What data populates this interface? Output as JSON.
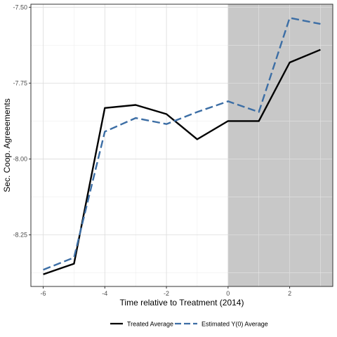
{
  "chart_data": {
    "type": "line",
    "title": "",
    "xlabel": "Time relative to Treatment (2014)",
    "ylabel": "Sec. Coop. Agreeements",
    "xlim": [
      -6.4,
      3.4
    ],
    "ylim": [
      -8.42,
      -7.49
    ],
    "xticks": [
      -6,
      -4,
      -2,
      0,
      2
    ],
    "xtick_labels": [
      "-6",
      "-4",
      "-2",
      "0",
      "2"
    ],
    "yticks": [
      -8.25,
      -8.0,
      -7.75,
      -7.5
    ],
    "ytick_labels": [
      "-8.25",
      "-8.00",
      "-7.75",
      "-7.50"
    ],
    "grid": true,
    "treatment_shading": {
      "from": 0,
      "to": 3.4,
      "color": "#c8c8c8"
    },
    "x": [
      -6,
      -5,
      -4,
      -3,
      -2,
      -1,
      0,
      1,
      2,
      3
    ],
    "series": [
      {
        "name": "Treated Average",
        "style": "solid",
        "color": "#000000",
        "values": [
          -8.38,
          -8.345,
          -7.832,
          -7.822,
          -7.852,
          -7.935,
          -7.875,
          -7.875,
          -7.682,
          -7.64
        ]
      },
      {
        "name": "Estimated Y(0) Average",
        "style": "dashed",
        "color": "#3c6ea5",
        "values": [
          -8.365,
          -8.325,
          -7.91,
          -7.865,
          -7.885,
          -7.845,
          -7.81,
          -7.845,
          -7.535,
          -7.555
        ]
      }
    ],
    "legend_position": "bottom"
  }
}
